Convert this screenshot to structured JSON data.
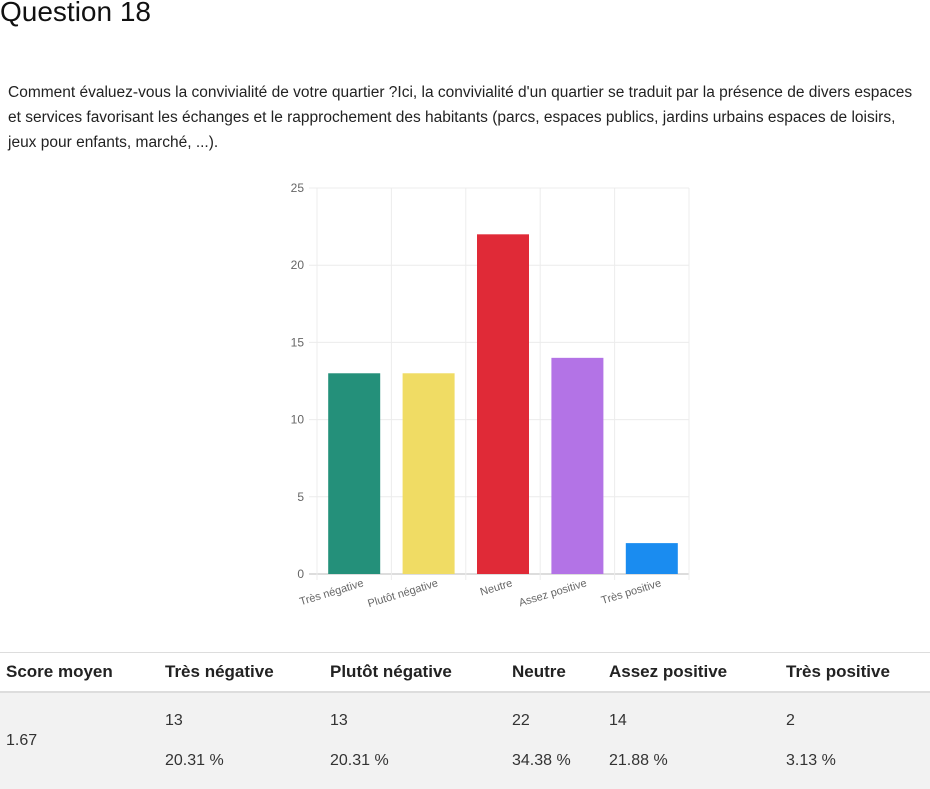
{
  "question": {
    "title": "Question 18",
    "text": "Comment évaluez-vous la convivialité de votre quartier ?Ici, la convivialité d'un quartier se traduit par la présence de divers espaces et services favorisant les échanges et le rapprochement des habitants (parcs, espaces publics, jardins urbains espaces de loisirs, jeux pour enfants, marché, ...)."
  },
  "chart_data": {
    "type": "bar",
    "categories": [
      "Très négative",
      "Plutôt négative",
      "Neutre",
      "Assez positive",
      "Très positive"
    ],
    "values": [
      13,
      13,
      22,
      14,
      2
    ],
    "colors": [
      "#24907a",
      "#f0dc64",
      "#e02a37",
      "#b373e6",
      "#1a8cf0"
    ],
    "ylim": [
      0,
      25
    ],
    "yticks": [
      0,
      5,
      10,
      15,
      20,
      25
    ],
    "grid": true,
    "title": "",
    "xlabel": "",
    "ylabel": ""
  },
  "table": {
    "headers": [
      "Score moyen",
      "Très négative",
      "Plutôt négative",
      "Neutre",
      "Assez positive",
      "Très positive"
    ],
    "score": "1.67",
    "cells": [
      {
        "count": "13",
        "pct": "20.31 %"
      },
      {
        "count": "13",
        "pct": "20.31 %"
      },
      {
        "count": "22",
        "pct": "34.38 %"
      },
      {
        "count": "14",
        "pct": "21.88 %"
      },
      {
        "count": "2",
        "pct": "3.13 %"
      }
    ]
  }
}
